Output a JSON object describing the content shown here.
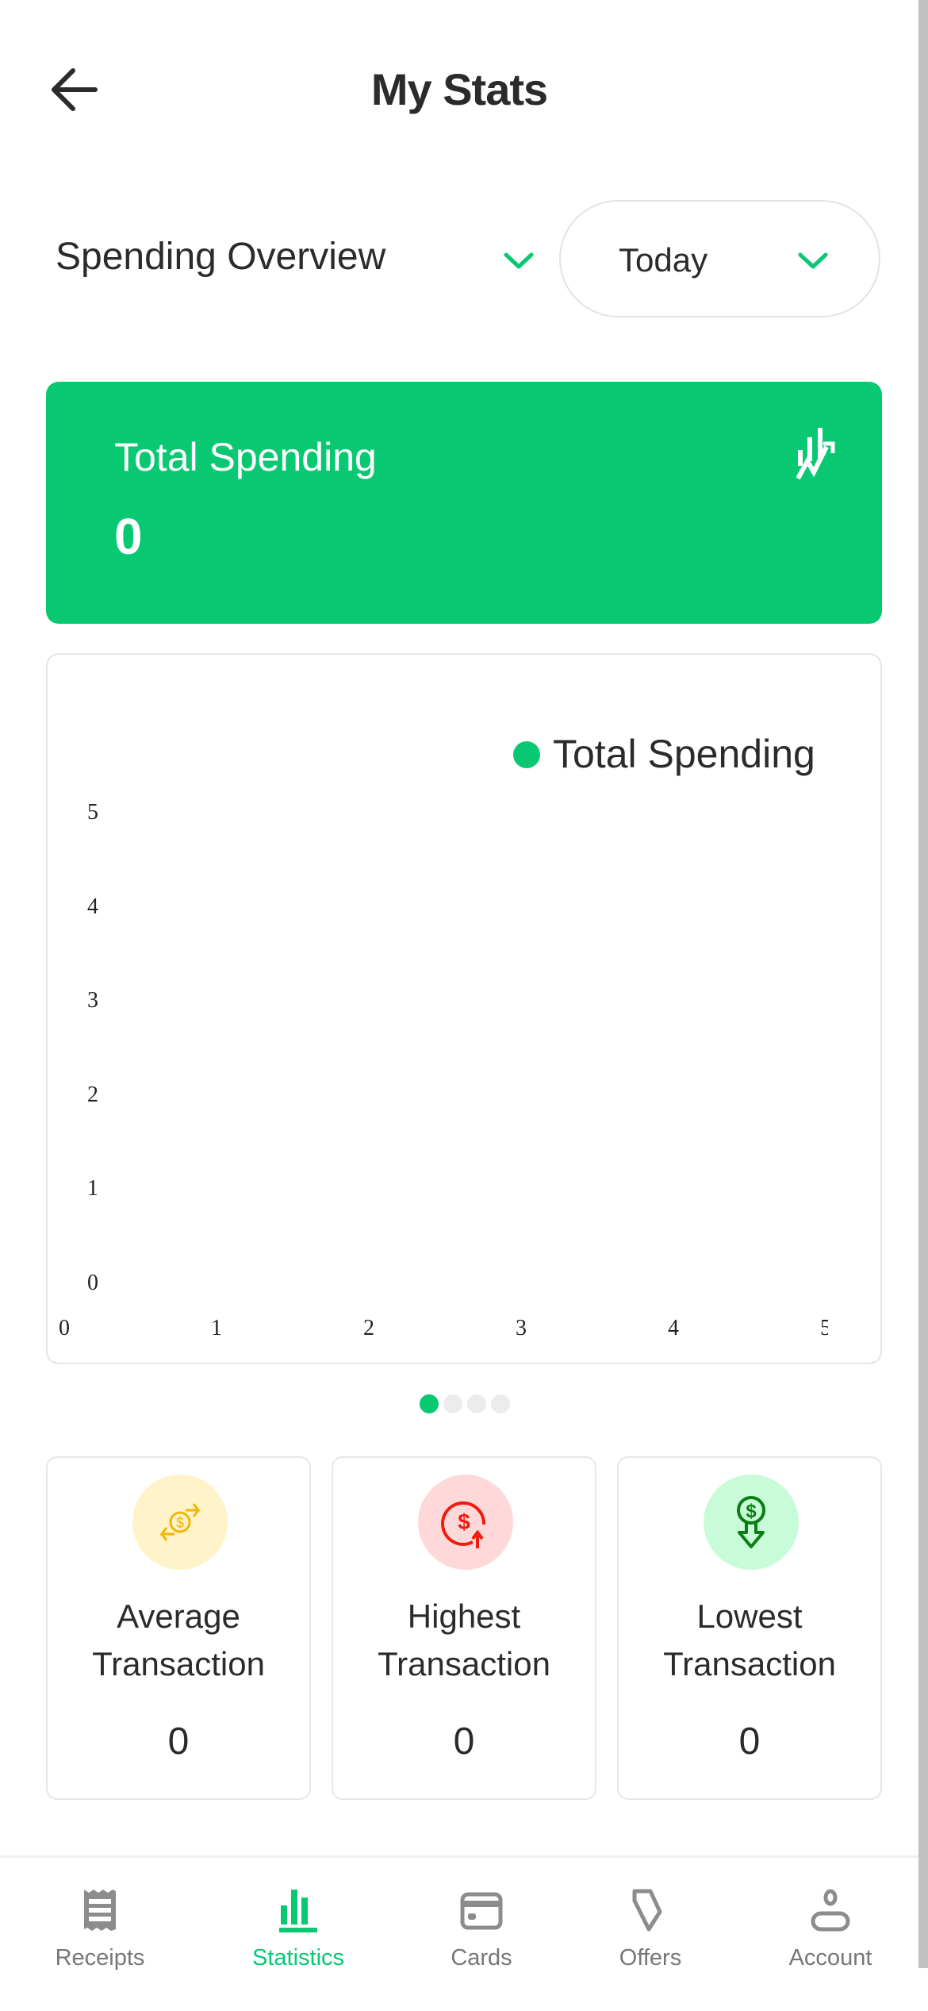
{
  "header": {
    "title": "My Stats",
    "back_icon": "arrow-left-icon"
  },
  "filters": {
    "overview_label": "Spending Overview",
    "period_value": "Today"
  },
  "summary": {
    "label": "Total Spending",
    "value": "0",
    "icon": "chart-trend-icon"
  },
  "chart_data": {
    "type": "line",
    "legend": [
      {
        "name": "Total Spending",
        "color": "#08c872"
      }
    ],
    "legend_position": "top-right",
    "x_ticks": [
      "0",
      "1",
      "2",
      "3",
      "4",
      "5"
    ],
    "y_ticks": [
      "5",
      "4",
      "3",
      "2",
      "1",
      "0"
    ],
    "xlim": [
      0,
      5
    ],
    "ylim": [
      0,
      5
    ],
    "series": [
      {
        "name": "Total Spending",
        "values": []
      }
    ],
    "grid": false
  },
  "pagination": {
    "pages": 4,
    "active": 1
  },
  "stats": [
    {
      "line1": "Average",
      "line2": "Transaction",
      "value": "0",
      "icon": "exchange-dollar-icon",
      "bg": "#fff3c9",
      "color": "#f2b705"
    },
    {
      "line1": "Highest",
      "line2": "Transaction",
      "value": "0",
      "icon": "dollar-up-icon",
      "bg": "#ffd9d9",
      "color": "#ee1c0e"
    },
    {
      "line1": "Lowest",
      "line2": "Transaction",
      "value": "0",
      "icon": "dollar-down-icon",
      "bg": "#c8fbd8",
      "color": "#0a7d12"
    }
  ],
  "nav": {
    "items": [
      {
        "label": "Receipts",
        "icon": "receipt-icon"
      },
      {
        "label": "Statistics",
        "icon": "bar-chart-icon",
        "active": true
      },
      {
        "label": "Cards",
        "icon": "credit-card-icon"
      },
      {
        "label": "Offers",
        "icon": "tag-icon"
      },
      {
        "label": "Account",
        "icon": "user-icon"
      }
    ]
  },
  "colors": {
    "accent": "#08c872",
    "text": "#2b2b2b",
    "muted": "#777777"
  }
}
